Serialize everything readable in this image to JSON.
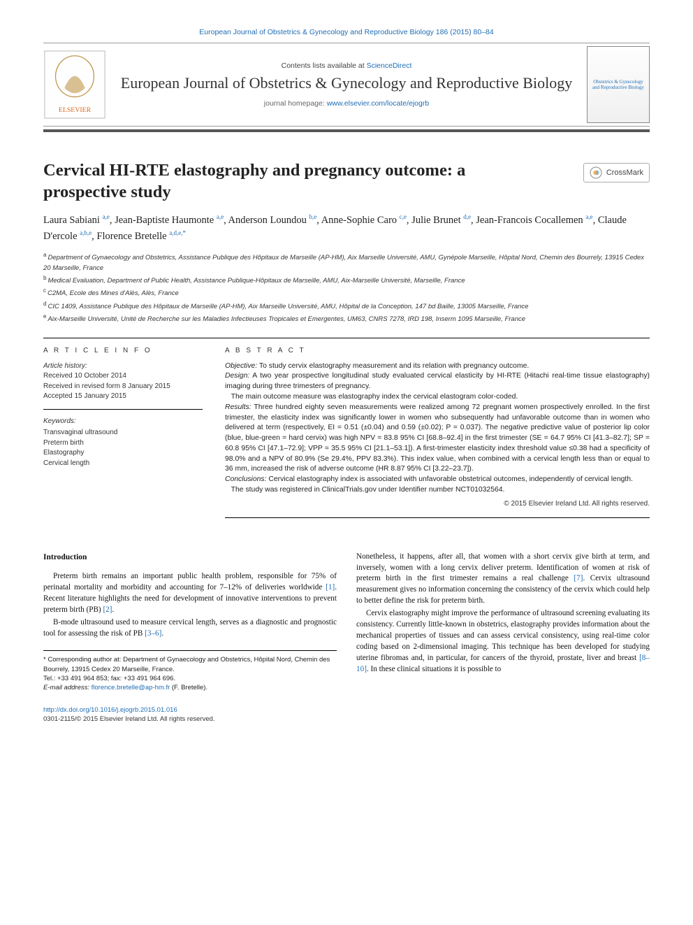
{
  "top_citation": "European Journal of Obstetrics & Gynecology and Reproductive Biology 186 (2015) 80–84",
  "masthead": {
    "contents_prefix": "Contents lists available at ",
    "contents_link": "ScienceDirect",
    "journal_name": "European Journal of Obstetrics & Gynecology and Reproductive Biology",
    "homepage_prefix": "journal homepage: ",
    "homepage_url": "www.elsevier.com/locate/ejogrb",
    "cover_text": "Obstetrics & Gynecology and Reproductive Biology"
  },
  "crossmark_label": "CrossMark",
  "title": "Cervical HI-RTE elastography and pregnancy outcome: a prospective study",
  "authors_html": "Laura Sabiani <sup><a>a,e</a></sup>, Jean-Baptiste Haumonte <sup><a>a,e</a></sup>, Anderson Loundou <sup><a>b,e</a></sup>, Anne-Sophie Caro <sup><a>c,e</a></sup>, Julie Brunet <sup><a>d,e</a></sup>, Jean-Francois Cocallemen <sup><a>a,e</a></sup>, Claude D'ercole <sup><a>a,b,e</a></sup>, Florence Bretelle <sup><a>a,d,e,</a>*</sup>",
  "affiliations": [
    {
      "sup": "a",
      "text": "Department of Gynaecology and Obstetrics, Assistance Publique des Hôpitaux de Marseille (AP-HM), Aix Marseille Université, AMU, Gynépole Marseille, Hôpital Nord, Chemin des Bourrely, 13915 Cedex 20 Marseille, France"
    },
    {
      "sup": "b",
      "text": "Medical Evaluation, Department of Public Health, Assistance Publique-Hôpitaux de Marseille, AMU, Aix-Marseille Université, Marseille, France"
    },
    {
      "sup": "c",
      "text": "C2MA, Ecole des Mines d'Alès, Alès, France"
    },
    {
      "sup": "d",
      "text": "CIC 1409, Assistance Publique des Hôpitaux de Marseille (AP-HM), Aix Marseille Université, AMU, Hôpital de la Conception, 147 bd Baille, 13005 Marseille, France"
    },
    {
      "sup": "e",
      "text": "Aix-Marseille Université, Unité de Recherche sur les Maladies Infectieuses Tropicales et Emergentes, UM63, CNRS 7278, IRD 198, Inserm 1095 Marseille, France"
    }
  ],
  "article_info": {
    "heading": "A R T I C L E   I N F O",
    "history_label": "Article history:",
    "received": "Received 10 October 2014",
    "revised": "Received in revised form 8 January 2015",
    "accepted": "Accepted 15 January 2015",
    "keywords_label": "Keywords:",
    "keywords": [
      "Transvaginal ultrasound",
      "Preterm birth",
      "Elastography",
      "Cervical length"
    ]
  },
  "abstract": {
    "heading": "A B S T R A C T",
    "objective_label": "Objective:",
    "objective": " To study cervix elastography measurement and its relation with pregnancy outcome.",
    "design_label": "Design:",
    "design": " A two year prospective longitudinal study evaluated cervical elasticity by HI-RTE (Hitachi real-time tissue elastography) imaging during three trimesters of pregnancy.",
    "outcome": "The main outcome measure was elastography index the cervical elastogram color-coded.",
    "results_label": "Results:",
    "results": " Three hundred eighty seven measurements were realized among 72 pregnant women prospectively enrolled. In the first trimester, the elasticity index was significantly lower in women who subsequently had unfavorable outcome than in women who delivered at term (respectively, EI = 0.51 (±0.04) and 0.59 (±0.02); P = 0.037). The negative predictive value of posterior lip color (blue, blue-green = hard cervix) was high NPV = 83.8 95% CI [68.8–92.4] in the first trimester (SE = 64.7 95% CI [41.3–82.7]; SP = 60.8 95% CI [47.1–72.9]; VPP = 35.5 95% CI [21.1–53.1]). A first-trimester elasticity index threshold value ≤0.38 had a specificity of 98.0% and a NPV of 80.9% (Se 29.4%, PPV 83.3%). This index value, when combined with a cervical length less than or equal to 36 mm, increased the risk of adverse outcome (HR 8.87 95% CI [3.22–23.7]).",
    "conclusions_label": "Conclusions:",
    "conclusions": " Cervical elastography index is associated with unfavorable obstetrical outcomes, independently of cervical length.",
    "registration": "The study was registered in ClinicalTrials.gov under Identifier number NCT01032564.",
    "copyright": "© 2015 Elsevier Ireland Ltd. All rights reserved."
  },
  "body": {
    "intro_heading": "Introduction",
    "p1": "Preterm birth remains an important public health problem, responsible for 75% of perinatal mortality and morbidity and accounting for 7–12% of deliveries worldwide ",
    "p1_ref": "[1]",
    "p1_b": ". Recent literature highlights the need for development of innovative interventions to prevent preterm birth (PB) ",
    "p1_ref2": "[2]",
    "p1_c": ".",
    "p2": "B-mode ultrasound used to measure cervical length, serves as a diagnostic and prognostic tool for assessing the risk of PB ",
    "p2_ref": "[3–6]",
    "p2_b": ".",
    "p3a": "Nonetheless, it happens, after all, that women with a short cervix give birth at term, and inversely, women with a long cervix deliver preterm. Identification of women at risk of preterm birth in the first trimester remains a real challenge ",
    "p3_ref": "[7]",
    "p3b": ". Cervix ultrasound measurement gives no information concerning the consistency of the cervix which could help to better define the risk for preterm birth.",
    "p4a": "Cervix elastography might improve the performance of ultrasound screening evaluating its consistency. Currently little-known in obstetrics, elastography provides information about the mechanical properties of tissues and can assess cervical consistency, using real-time color coding based on 2-dimensional imaging. This technique has been developed for studying uterine fibromas and, in particular, for cancers of the thyroid, prostate, liver and breast ",
    "p4_ref": "[8–10]",
    "p4b": ". In these clinical situations it is possible to"
  },
  "corr": {
    "star": "* ",
    "text": "Corresponding author at: Department of Gynaecology and Obstetrics, Hôpital Nord, Chemin des Bourrely, 13915 Cedex 20 Marseille, France.",
    "tel": "Tel.: +33 491 964 853; fax: +33 491 964 696.",
    "email_label": "E-mail address: ",
    "email": "florence.bretelle@ap-hm.fr",
    "email_suffix": " (F. Bretelle)."
  },
  "footer": {
    "doi": "http://dx.doi.org/10.1016/j.ejogrb.2015.01.016",
    "issn_line": "0301-2115/© 2015 Elsevier Ireland Ltd. All rights reserved."
  },
  "colors": {
    "link": "#1f6db5",
    "rule_thick": "#555555",
    "rule_thin": "#000000",
    "text": "#111111",
    "muted": "#333333"
  }
}
